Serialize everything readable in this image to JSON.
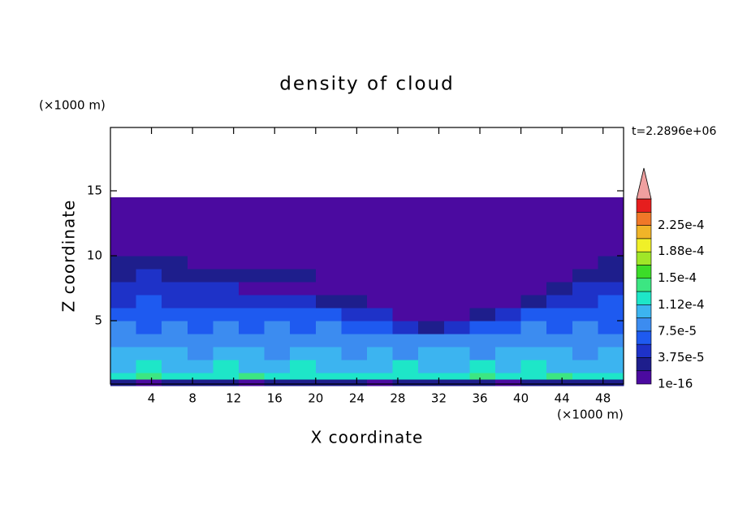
{
  "chart_data": {
    "type": "contour",
    "title": "density of cloud",
    "xlabel": "X coordinate",
    "ylabel": "Z coordinate",
    "xunit": "(×1000 m)",
    "yunit": "(×1000 m)",
    "annotation": "t=2.2896e+06",
    "xlim": [
      0,
      50
    ],
    "ylim": [
      0,
      20
    ],
    "xticks": [
      4,
      8,
      12,
      16,
      20,
      24,
      28,
      32,
      36,
      40,
      44,
      48
    ],
    "yticks": [
      5,
      10,
      15
    ],
    "field": {
      "x_edges": [
        0,
        2.5,
        5,
        7.5,
        10,
        12.5,
        15,
        17.5,
        20,
        22.5,
        25,
        27.5,
        30,
        32.5,
        35,
        37.5,
        40,
        42.5,
        45,
        47.5,
        50
      ],
      "z_edges": [
        0,
        0.5,
        1,
        2,
        3,
        4,
        5,
        6,
        7,
        8,
        9,
        10,
        14.5
      ],
      "values": [
        [
          2e-05,
          1.5e-05,
          2e-05,
          2.5e-05,
          2e-05,
          1.5e-05,
          2e-05,
          2e-05,
          2.5e-05,
          2e-05,
          1.5e-05,
          2e-05,
          2e-05,
          2.5e-05,
          2e-05,
          1.5e-05,
          2e-05,
          2e-05,
          2.5e-05,
          2e-05
        ],
        [
          0.00012,
          0.000135,
          0.00012,
          0.00013,
          0.00012,
          0.000135,
          0.00012,
          0.000115,
          0.00012,
          0.00013,
          0.00012,
          0.000115,
          0.00012,
          0.00013,
          0.000135,
          0.00012,
          0.00013,
          0.000135,
          0.00012,
          0.00013
        ],
        [
          0.00011,
          0.000115,
          0.000105,
          0.00011,
          0.000115,
          0.000105,
          0.00011,
          0.000115,
          0.00011,
          0.000105,
          0.00011,
          0.000115,
          0.00011,
          0.000105,
          0.000115,
          0.00011,
          0.000115,
          0.00011,
          0.000105,
          0.00011
        ],
        [
          9.5e-05,
          0.0001,
          9.5e-05,
          9e-05,
          0.0001,
          9.5e-05,
          9e-05,
          9.5e-05,
          0.0001,
          9e-05,
          9.5e-05,
          9e-05,
          9.5e-05,
          0.0001,
          9e-05,
          9.5e-05,
          0.0001,
          9.5e-05,
          9e-05,
          0.0001
        ],
        [
          8.5e-05,
          8e-05,
          8.5e-05,
          9e-05,
          8e-05,
          8.5e-05,
          8e-05,
          8.5e-05,
          8e-05,
          8.5e-05,
          8e-05,
          7.5e-05,
          8e-05,
          8.5e-05,
          8e-05,
          8.5e-05,
          9e-05,
          8e-05,
          8.5e-05,
          8e-05
        ],
        [
          7.5e-05,
          7e-05,
          7.5e-05,
          7e-05,
          7.5e-05,
          7e-05,
          7.5e-05,
          7e-05,
          7.5e-05,
          7e-05,
          6.5e-05,
          5e-05,
          3e-05,
          4.5e-05,
          6e-05,
          7e-05,
          7.5e-05,
          7e-05,
          7.5e-05,
          7e-05
        ],
        [
          6.5e-05,
          6e-05,
          6.5e-05,
          6e-05,
          6.5e-05,
          6e-05,
          6.5e-05,
          6e-05,
          6e-05,
          5.5e-05,
          4.5e-05,
          1e-16,
          1e-16,
          1e-16,
          3e-05,
          5e-05,
          6e-05,
          6.5e-05,
          6e-05,
          6.5e-05
        ],
        [
          5.5e-05,
          6e-05,
          5.5e-05,
          5e-05,
          5.5e-05,
          5e-05,
          4.5e-05,
          4e-05,
          3e-05,
          3e-05,
          1e-16,
          1e-16,
          1e-16,
          1e-16,
          1e-16,
          1e-16,
          3e-05,
          5e-05,
          5.5e-05,
          6e-05
        ],
        [
          4.5e-05,
          5e-05,
          4.5e-05,
          4.5e-05,
          4e-05,
          1e-16,
          1e-16,
          1e-16,
          1e-16,
          1e-16,
          1e-16,
          1e-16,
          1e-16,
          1e-16,
          1e-16,
          1e-16,
          1e-16,
          3e-05,
          4.5e-05,
          5e-05
        ],
        [
          3.5e-05,
          4e-05,
          3.5e-05,
          2.5e-05,
          2.5e-05,
          2.5e-05,
          2.5e-05,
          2.5e-05,
          1e-16,
          1e-16,
          1e-16,
          1e-16,
          1e-16,
          1e-16,
          1e-16,
          1e-16,
          1e-16,
          1e-16,
          2.5e-05,
          3.5e-05
        ],
        [
          2e-05,
          2e-05,
          2e-05,
          1e-16,
          1e-16,
          1e-16,
          1e-16,
          1e-16,
          1e-16,
          1e-16,
          1e-16,
          1e-16,
          1e-16,
          1e-16,
          1e-16,
          1e-16,
          1e-16,
          1e-16,
          1e-16,
          2e-05
        ],
        [
          1e-16,
          1e-16,
          1e-16,
          1e-16,
          1e-16,
          1e-16,
          1e-16,
          1e-16,
          1e-16,
          1e-16,
          1e-16,
          1e-16,
          1e-16,
          1e-16,
          1e-16,
          1e-16,
          1e-16,
          1e-16,
          1e-16,
          1e-16
        ]
      ]
    },
    "colorbar": {
      "levels": [
        0,
        1.875e-05,
        3.75e-05,
        5.625e-05,
        7.5e-05,
        9.375e-05,
        0.0001125,
        0.00013125,
        0.00015,
        0.00016875,
        0.0001875,
        0.00020625,
        0.000225,
        0.00024375,
        0.0002625
      ],
      "colors": [
        "#4b0aa0",
        "#1e1e8c",
        "#1e32c8",
        "#1e5af0",
        "#3c8cf0",
        "#3cb4f0",
        "#1ee6c8",
        "#3ce682",
        "#3cdc28",
        "#a0e628",
        "#f0f028",
        "#f0b428",
        "#f07828",
        "#e61e1e"
      ],
      "extend_color": "#f0a0a0",
      "ticks": [
        1e-16,
        {
          "value": 3.75e-05,
          "label": "3.75e-5"
        },
        {
          "value": 7.5e-05,
          "label": "7.5e-5"
        },
        {
          "value": 0.000112,
          "label": "1.12e-4"
        },
        {
          "value": 0.00015,
          "label": "1.5e-4"
        },
        {
          "value": 0.000188,
          "label": "1.88e-4"
        },
        {
          "value": 0.000225,
          "label": "2.25e-4"
        }
      ]
    }
  }
}
